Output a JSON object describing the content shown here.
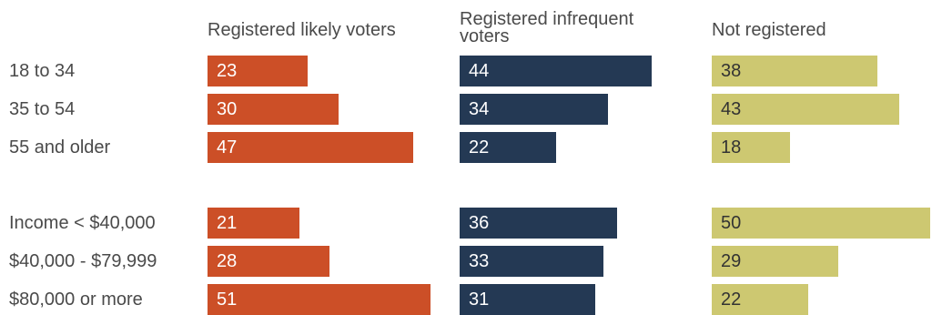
{
  "chart_data": {
    "type": "bar",
    "title": "",
    "xlabel": "",
    "ylabel": "",
    "categories": [
      "18 to 34",
      "35 to 54",
      "55 and older",
      "Income < $40,000",
      "$40,000 - $79,999",
      "$80,000 or more"
    ],
    "groups": [
      [
        "18 to 34",
        "35 to 54",
        "55 and older"
      ],
      [
        "Income < $40,000",
        "$40,000 - $79,999",
        "$80,000 or more"
      ]
    ],
    "series": [
      {
        "name": "Registered likely voters",
        "color": "#cc4f27",
        "label_color": "#ffffff",
        "values": [
          23,
          30,
          47,
          21,
          28,
          51
        ]
      },
      {
        "name": "Registered infrequent voters",
        "color": "#243954",
        "label_color": "#ffffff",
        "values": [
          44,
          34,
          22,
          36,
          33,
          31
        ]
      },
      {
        "name": "Not registered",
        "color": "#cdc871",
        "label_color": "#333333",
        "values": [
          38,
          43,
          18,
          50,
          29,
          22
        ]
      }
    ],
    "xlim": [
      0,
      50
    ],
    "grid": false,
    "legend": "none",
    "orientation": "horizontal"
  }
}
